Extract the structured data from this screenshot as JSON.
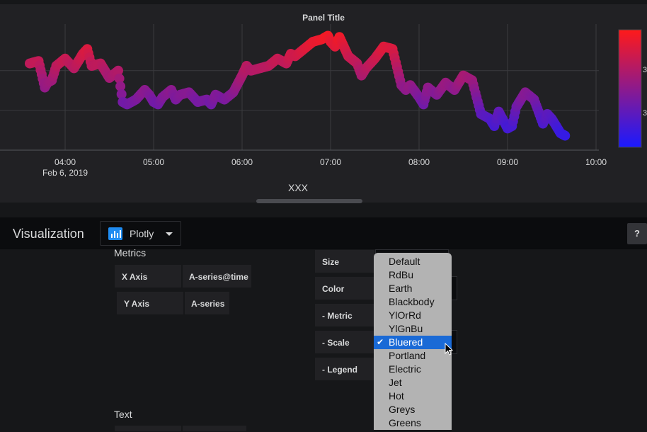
{
  "panel": {
    "title": "Panel Title",
    "xaxis_title": "XXX"
  },
  "chart_data": {
    "type": "scatter",
    "mode": "lines+markers",
    "title": "Panel Title",
    "xlabel": "XXX",
    "ylabel": "",
    "x_ticks": [
      "04:00",
      "05:00",
      "06:00",
      "07:00",
      "08:00",
      "09:00",
      "10:00"
    ],
    "x_date_label": "Feb 6, 2019",
    "grid": true,
    "colorscale": "Bluered",
    "colorbar_colors": [
      "#ff1a1a",
      "#1a1aff"
    ],
    "colorbar_labels": [
      "3",
      "3"
    ],
    "series": [
      {
        "x_hours": [
          3.6,
          3.7,
          3.77,
          3.8,
          3.85,
          3.9,
          4.0,
          4.1,
          4.2,
          4.25,
          4.3,
          4.4,
          4.5,
          4.6,
          4.65,
          4.7,
          4.8,
          4.9,
          4.95,
          5.0,
          5.05,
          5.1,
          5.2,
          5.25,
          5.3,
          5.4,
          5.5,
          5.6,
          5.65,
          5.7,
          5.8,
          5.9,
          6.0,
          6.05,
          6.1,
          6.2,
          6.3,
          6.4,
          6.5,
          6.55,
          6.6,
          6.7,
          6.8,
          6.9,
          6.97,
          7.0,
          7.05,
          7.1,
          7.2,
          7.3,
          7.35,
          7.4,
          7.5,
          7.6,
          7.7,
          7.8,
          7.85,
          7.9,
          8.0,
          8.05,
          8.1,
          8.2,
          8.3,
          8.4,
          8.5,
          8.6,
          8.7,
          8.8,
          8.85,
          8.9,
          9.0,
          9.05,
          9.1,
          9.2,
          9.3,
          9.4,
          9.45,
          9.5,
          9.6,
          9.65
        ],
        "y_norm": [
          0.72,
          0.74,
          0.52,
          0.56,
          0.58,
          0.7,
          0.76,
          0.68,
          0.8,
          0.84,
          0.7,
          0.72,
          0.6,
          0.66,
          0.4,
          0.38,
          0.42,
          0.5,
          0.46,
          0.4,
          0.38,
          0.44,
          0.5,
          0.42,
          0.46,
          0.48,
          0.4,
          0.42,
          0.38,
          0.46,
          0.42,
          0.48,
          0.62,
          0.7,
          0.66,
          0.68,
          0.7,
          0.76,
          0.72,
          0.8,
          0.78,
          0.84,
          0.9,
          0.92,
          0.95,
          0.9,
          0.86,
          0.94,
          0.78,
          0.72,
          0.62,
          0.68,
          0.76,
          0.86,
          0.84,
          0.54,
          0.5,
          0.54,
          0.44,
          0.38,
          0.52,
          0.46,
          0.56,
          0.5,
          0.62,
          0.58,
          0.3,
          0.26,
          0.2,
          0.32,
          0.18,
          0.2,
          0.36,
          0.48,
          0.42,
          0.22,
          0.3,
          0.26,
          0.14,
          0.12
        ]
      }
    ]
  },
  "viz": {
    "title": "Visualization",
    "picker_label": "Plotly",
    "help": "?"
  },
  "metrics": {
    "heading": "Metrics",
    "x_axis_label": "X Axis",
    "x_axis_value": "A-series@time",
    "y_axis_label": "Y Axis",
    "y_axis_value": "A-series"
  },
  "text_section": {
    "heading": "Text"
  },
  "marker": {
    "size_label": "Size",
    "color_label": "Color",
    "metric_label": "- Metric",
    "scale_label": "- Scale",
    "legend_label": "- Legend"
  },
  "scale_dropdown": {
    "selected": "Bluered",
    "options": [
      "Default",
      "RdBu",
      "Earth",
      "Blackbody",
      "YlOrRd",
      "YlGnBu",
      "Bluered",
      "Portland",
      "Electric",
      "Jet",
      "Hot",
      "Greys",
      "Greens"
    ]
  }
}
